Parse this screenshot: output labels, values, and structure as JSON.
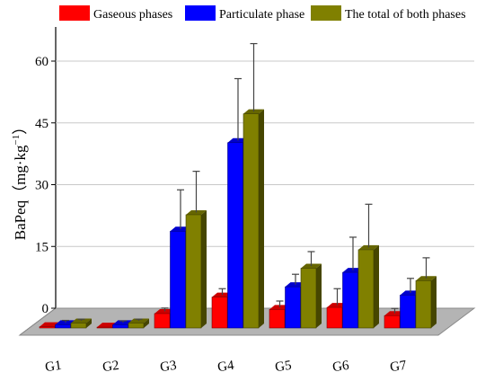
{
  "chart_data": {
    "type": "bar",
    "ylabel": "BaPeq",
    "yunit_main": "（mg·kg",
    "yunit_exp": "−1",
    "yunit_close": "）",
    "categories": [
      "G1",
      "G2",
      "G3",
      "G4",
      "G5",
      "G6",
      "G7"
    ],
    "yticks": [
      "0",
      "15",
      "30",
      "45",
      "60"
    ],
    "ylim": [
      0,
      70
    ],
    "grid": true,
    "legend_position": "top",
    "series": [
      {
        "name": "Gaseous phases",
        "color": "#ff0000",
        "values": [
          0.3,
          0.2,
          3.5,
          7.5,
          4.5,
          5.0,
          3.0
        ],
        "errors": [
          0,
          0,
          0.8,
          1.5,
          1.5,
          4.0,
          1.2
        ]
      },
      {
        "name": "Particulate phase",
        "color": "#0000ff",
        "values": [
          0.8,
          0.8,
          23.5,
          45.0,
          10.0,
          13.5,
          8.0
        ],
        "errors": [
          0.5,
          0.4,
          9.5,
          15.0,
          2.5,
          8.0,
          3.5
        ]
      },
      {
        "name": "The total of both phases",
        "color": "#808000",
        "values": [
          1.2,
          1.2,
          27.5,
          52.0,
          14.5,
          19.0,
          11.5
        ],
        "errors": [
          0.4,
          0.4,
          10.0,
          16.5,
          3.5,
          10.5,
          5.0
        ]
      }
    ]
  }
}
